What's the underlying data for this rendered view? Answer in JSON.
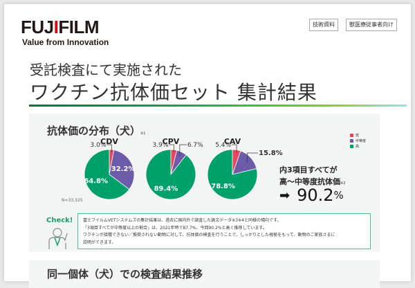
{
  "header": {
    "logo": "FUJIFILM",
    "tagline": "Value from Innovation",
    "tags": [
      "技術資料",
      "獣医療従事者向け"
    ]
  },
  "subtitle": "受託検査にて実施された",
  "title": "ワクチン抗体価セット 集計結果",
  "section1": {
    "heading": "抗体価の分布（犬）",
    "note": "※1",
    "sample": "N=33,325",
    "legend": [
      {
        "label": "低",
        "color": "#e8455f"
      },
      {
        "label": "中等度",
        "color": "#6b5ba8"
      },
      {
        "label": "高",
        "color": "#00a06a"
      }
    ],
    "summary_line1": "内3項目すべてが",
    "summary_line2": "高〜中等度抗体価",
    "summary_note": "※2",
    "result_arrow": "➡",
    "result_value": "90.2",
    "result_unit": "%"
  },
  "chart_data": {
    "type": "pie",
    "series": [
      {
        "name": "CDV",
        "values": [
          3.0,
          32.2,
          64.8
        ],
        "labels": [
          "3.0%",
          "32.2%",
          "64.8%"
        ]
      },
      {
        "name": "CPV",
        "values": [
          3.9,
          6.7,
          89.4
        ],
        "labels": [
          "3.9%",
          "6.7%",
          "89.4%"
        ]
      },
      {
        "name": "CAV",
        "values": [
          5.4,
          15.8,
          78.8
        ],
        "labels": [
          "5.4%",
          "15.8%",
          "78.8%"
        ]
      }
    ],
    "categories": [
      "低",
      "中等度",
      "高"
    ]
  },
  "check": {
    "label": "Check!",
    "lines": [
      "富士フイルムVETシステムズの集計結果は、過去に国内外で調査した論文データ※3※4と同様の傾向です。",
      "「3項目すべてが中等度以上の割合」は、2021年時で87.7%、今回90.2%と高く推移しています。",
      "ワクチンが接種できない／推奨されない動物に対して、抗体価の検査を行うことで、しっかりとした根拠をもって、動物のご家族さまに",
      "説明ができます。"
    ]
  },
  "section2": {
    "heading": "同一個体（犬）での検査結果推移"
  }
}
